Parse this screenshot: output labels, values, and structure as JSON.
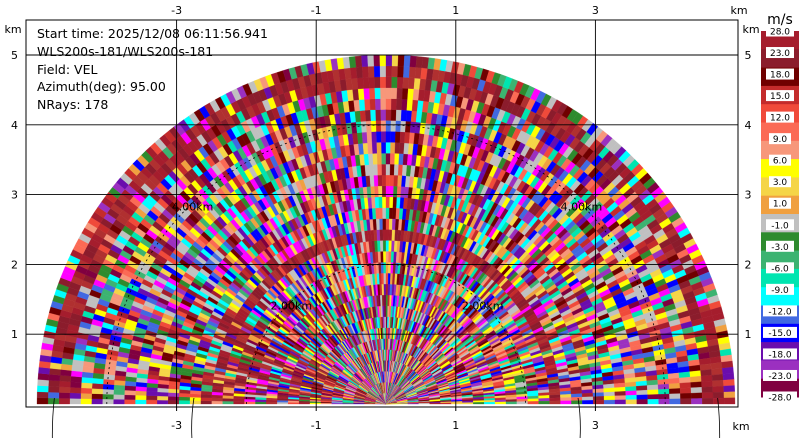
{
  "chart_data": {
    "type": "heatmap",
    "subtype": "radar-ppi-sector",
    "info": {
      "start_time": "Start time: 2025/12/08 06:11:56.941",
      "instrument": "WLS200s-181/WLS200s-181",
      "field": "Field: VEL",
      "azimuth": "Azimuth(deg): 95.00",
      "nrays": "NRays: 178"
    },
    "x_axis": {
      "unit": "km",
      "ticks": [
        -3,
        -1,
        1,
        3
      ],
      "lim": [
        -5.5,
        5.2
      ]
    },
    "y_axis": {
      "unit": "km",
      "ticks": [
        1,
        2,
        3,
        4,
        5
      ],
      "lim": [
        0,
        6
      ]
    },
    "range_rings": [
      {
        "label": "2.00km",
        "radius_km": 2
      },
      {
        "label": "4.00km",
        "radius_km": 4
      }
    ],
    "sector": {
      "azimuth_start_deg": 270,
      "azimuth_end_deg": 90,
      "nrays": 178,
      "max_range_km": 5.0
    },
    "colorbar": {
      "unit": "m/s",
      "ticks": [
        "28.0",
        "23.0",
        "18.0",
        "15.0",
        "12.0",
        "9.0",
        "6.0",
        "3.0",
        "1.0",
        "-1.0",
        "-3.0",
        "-6.0",
        "-9.0",
        "-12.0",
        "-15.0",
        "-18.0",
        "-23.0",
        "-28.0"
      ],
      "colors": [
        "#a51d2d",
        "#8b1c2c",
        "#700000",
        "#c42b2b",
        "#f04a3a",
        "#fb6a55",
        "#f7977a",
        "#ffff00",
        "#f5d547",
        "#f0a040",
        "#c0c0c0",
        "#2e8b2e",
        "#3cb371",
        "#00e5b0",
        "#00ffff",
        "#4169e1",
        "#0000ff",
        "#6a0dad",
        "#9b30c0",
        "#800040"
      ]
    }
  }
}
